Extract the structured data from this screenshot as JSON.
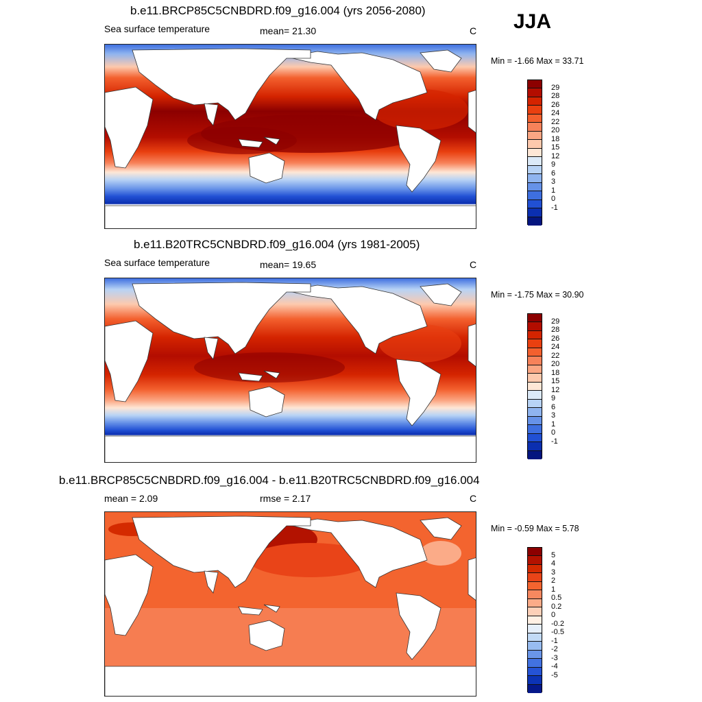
{
  "season": "JJA",
  "panels": [
    {
      "title": "b.e11.BRCP85C5CNBDRD.f09_g16.004 (yrs 2056-2080)",
      "left_label": "Sea surface temperature",
      "mid_label": "mean=  21.30",
      "units": "C",
      "minmax": "Min =  -1.66 Max =  33.71",
      "colorbar_labels": [
        "29",
        "28",
        "26",
        "24",
        "22",
        "20",
        "18",
        "15",
        "12",
        "9",
        "6",
        "3",
        "1",
        "0",
        "-1"
      ],
      "colorbar_colors": [
        "#8c0000",
        "#b30d00",
        "#d42400",
        "#e94010",
        "#f3602e",
        "#f7825a",
        "#fba683",
        "#fdc9ad",
        "#fee7d6",
        "#dceaf8",
        "#b8d3f5",
        "#8fb4ef",
        "#6692e8",
        "#3e6fe0",
        "#2150d4",
        "#0b2fb0",
        "#04157f"
      ]
    },
    {
      "title": "b.e11.B20TRC5CNBDRD.f09_g16.004 (yrs 1981-2005)",
      "left_label": "Sea surface temperature",
      "mid_label": "mean=  19.65",
      "units": "C",
      "minmax": "Min =  -1.75 Max =  30.90",
      "colorbar_labels": [
        "29",
        "28",
        "26",
        "24",
        "22",
        "20",
        "18",
        "15",
        "12",
        "9",
        "6",
        "3",
        "1",
        "0",
        "-1"
      ],
      "colorbar_colors": [
        "#8c0000",
        "#b30d00",
        "#d42400",
        "#e94010",
        "#f3602e",
        "#f7825a",
        "#fba683",
        "#fdc9ad",
        "#fee7d6",
        "#dceaf8",
        "#b8d3f5",
        "#8fb4ef",
        "#6692e8",
        "#3e6fe0",
        "#2150d4",
        "#0b2fb0",
        "#04157f"
      ]
    },
    {
      "title": "b.e11.BRCP85C5CNBDRD.f09_g16.004 - b.e11.B20TRC5CNBDRD.f09_g16.004",
      "left_label": "mean =   2.09",
      "mid_label": "rmse =   2.17",
      "units": "C",
      "minmax": "Min =  -0.59 Max =   5.78",
      "colorbar_labels": [
        "5",
        "4",
        "3",
        "2",
        "1",
        "0.5",
        "0.2",
        "0",
        "-0.2",
        "-0.5",
        "-1",
        "-2",
        "-3",
        "-4",
        "-5"
      ],
      "colorbar_colors": [
        "#8c0000",
        "#b31200",
        "#d42a00",
        "#e94418",
        "#f3642f",
        "#f7885f",
        "#fbab88",
        "#fdd0b8",
        "#fff0e4",
        "#e6effa",
        "#c2daf6",
        "#98bcf0",
        "#6a96e9",
        "#4272e1",
        "#2553d6",
        "#0c33b5",
        "#05188a"
      ]
    }
  ]
}
